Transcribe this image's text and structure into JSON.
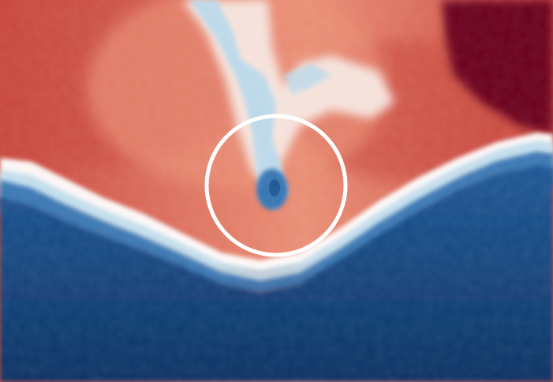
{
  "colormap": {
    "name": "RdBu",
    "colors": {
      "dark_red": "#6b001c",
      "red": "#c8473e",
      "light_red": "#ea8e75",
      "pale": "#f7e7e1",
      "white": "#ffffff",
      "light_blue": "#b9d9ea",
      "blue": "#2f6fb0",
      "mid_blue": "#1e5795",
      "dark_blue": "#0a3263"
    }
  },
  "highlight": {
    "shape": "circle",
    "stroke_color": "#ffffff"
  },
  "icon": "circle-marker-icon"
}
